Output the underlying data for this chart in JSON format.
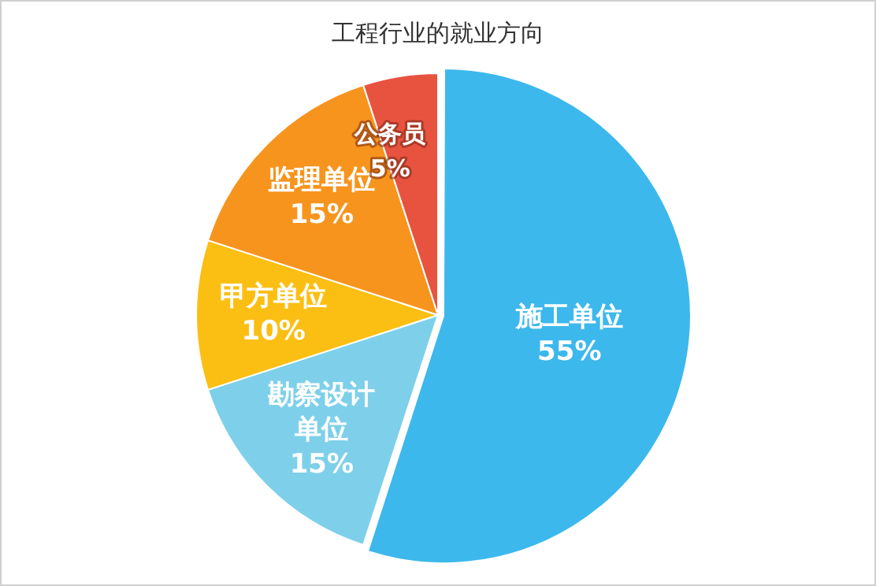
{
  "chart_data": {
    "type": "pie",
    "title": "工程行业的就业方向",
    "categories": [
      "施工单位",
      "勘察设计单位",
      "甲方单位",
      "监理单位",
      "公务员"
    ],
    "values": [
      55,
      15,
      10,
      15,
      5
    ],
    "colors": [
      "#3db8ec",
      "#7ed0ea",
      "#fbbf14",
      "#f7941d",
      "#e8533f"
    ],
    "value_labels": [
      "55%",
      "15%",
      "10%",
      "15%",
      "5%"
    ],
    "legend": false
  }
}
